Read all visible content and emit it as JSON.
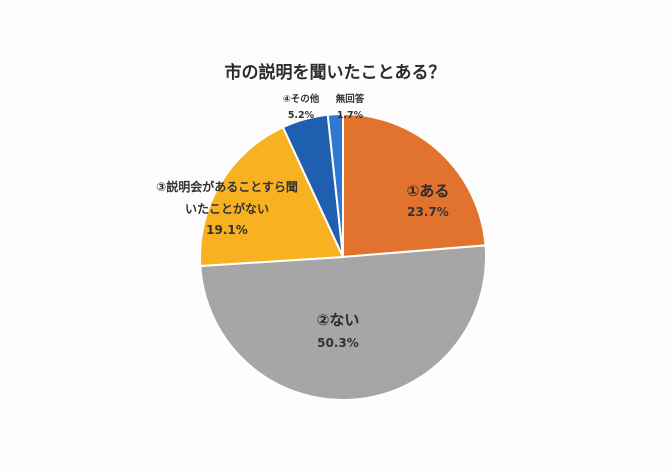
{
  "chart_data": {
    "type": "pie",
    "title": "市の説明を聞いたことある？",
    "start": "top",
    "direction": "clockwise",
    "slices": [
      {
        "label": "①ある",
        "value": 23.7,
        "value_label": "23.7%",
        "color": "#e2732f"
      },
      {
        "label": "②ない",
        "value": 50.3,
        "value_label": "50.3%",
        "color": "#a6a6a6"
      },
      {
        "label_lines": [
          "③説明会があることすら聞",
          "いたことがない"
        ],
        "value": 19.1,
        "value_label": "19.1%",
        "color": "#f7b121"
      },
      {
        "label": "④その他",
        "value": 5.2,
        "value_label": "5.2%",
        "color": "#1f5fb0"
      },
      {
        "label": "無回答",
        "value": 1.7,
        "value_label": "1.7%",
        "color": "#2f79d0"
      }
    ]
  }
}
